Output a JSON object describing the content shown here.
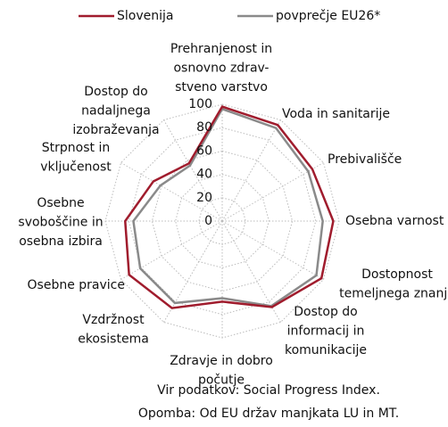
{
  "chart_data": {
    "type": "radar",
    "categories": [
      [
        "Prehranjenost in",
        "osnovno zdrav-",
        "stveno varstvo"
      ],
      [
        "Voda in sanitarije"
      ],
      [
        "Prebivališče"
      ],
      [
        "Osebna varnost"
      ],
      [
        "Dostopnost",
        "temeljnega znanja"
      ],
      [
        "Dostop do",
        "informacij in",
        "komunikacije"
      ],
      [
        "Zdravje in dobro",
        "počutje"
      ],
      [
        "Vzdržnost",
        "ekosistema"
      ],
      [
        "Osebne pravice"
      ],
      [
        "Osebne",
        "svoboščine in",
        "osebna izbira"
      ],
      [
        "Strpnost in",
        "vključenost"
      ],
      [
        "Dostop do",
        "nadaljnega",
        "izobraževanja"
      ]
    ],
    "series": [
      {
        "name": "Slovenija",
        "color": "#a01c2d",
        "values": [
          98,
          95,
          89,
          95,
          98,
          85,
          69,
          86,
          92,
          83,
          68,
          57
        ]
      },
      {
        "name": "povprečje EU26*",
        "color": "#8a8a8a",
        "values": [
          96,
          92,
          85,
          86,
          93,
          84,
          66,
          81,
          81,
          76,
          61,
          55
        ]
      }
    ],
    "ylim": [
      0,
      100
    ],
    "yticks": [
      0,
      20,
      40,
      60,
      80,
      100
    ],
    "grid": true,
    "legend": "top",
    "notes": [
      "Vir podatkov: Social Progress Index.",
      "Opomba: Od EU držav manjkata LU in MT."
    ]
  }
}
